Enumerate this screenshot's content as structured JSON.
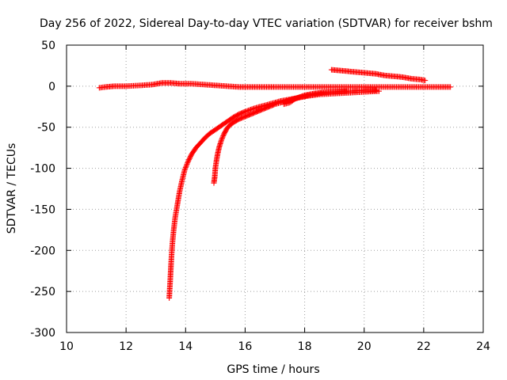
{
  "chart_data": {
    "type": "scatter",
    "title": "Day 256 of 2022, Sidereal Day-to-day VTEC variation (SDTVAR) for receiver bshm",
    "xlabel": "GPS time / hours",
    "ylabel": "SDTVAR / TECUs",
    "xlim": [
      10,
      24
    ],
    "ylim": [
      -300,
      50
    ],
    "xticks": [
      10,
      12,
      14,
      16,
      18,
      20,
      22,
      24
    ],
    "yticks": [
      50,
      0,
      -50,
      -100,
      -150,
      -200,
      -250,
      -300
    ],
    "xtick_labels": [
      "10",
      "12",
      "14",
      "16",
      "18",
      "20",
      "22",
      "24"
    ],
    "ytick_labels": [
      "50",
      "0",
      "-50",
      "-100",
      "-150",
      "-200",
      "-250",
      "-300"
    ],
    "grid": true,
    "marker": "plus",
    "color": "#ff0000",
    "series": [
      {
        "points": [
          [
            11.1,
            -2
          ],
          [
            11.3,
            -1
          ],
          [
            11.6,
            0
          ],
          [
            12.0,
            0
          ],
          [
            12.5,
            1
          ],
          [
            12.9,
            2
          ],
          [
            13.2,
            4
          ],
          [
            13.5,
            4
          ],
          [
            13.8,
            3
          ],
          [
            14.2,
            3
          ],
          [
            14.6,
            2
          ],
          [
            15.0,
            1
          ],
          [
            15.4,
            0
          ],
          [
            15.8,
            -1
          ],
          [
            16.2,
            -1
          ],
          [
            16.6,
            -1
          ],
          [
            17.0,
            -1
          ],
          [
            17.5,
            -1
          ],
          [
            18.0,
            -1
          ],
          [
            18.5,
            -1
          ],
          [
            19.0,
            -1
          ],
          [
            19.5,
            -1
          ],
          [
            20.0,
            -1
          ],
          [
            20.5,
            -1
          ],
          [
            21.0,
            -1
          ],
          [
            21.5,
            -1
          ],
          [
            22.0,
            -1
          ],
          [
            22.5,
            -1
          ],
          [
            22.9,
            -1
          ]
        ]
      },
      {
        "points": [
          [
            13.45,
            -258
          ],
          [
            13.47,
            -245
          ],
          [
            13.49,
            -232
          ],
          [
            13.51,
            -218
          ],
          [
            13.53,
            -205
          ],
          [
            13.56,
            -190
          ],
          [
            13.6,
            -175
          ],
          [
            13.65,
            -160
          ],
          [
            13.72,
            -145
          ],
          [
            13.8,
            -128
          ],
          [
            13.88,
            -115
          ],
          [
            13.97,
            -102
          ],
          [
            14.08,
            -92
          ],
          [
            14.2,
            -83
          ],
          [
            14.35,
            -75
          ],
          [
            14.5,
            -69
          ],
          [
            14.65,
            -63
          ],
          [
            14.8,
            -58
          ],
          [
            15.0,
            -53
          ],
          [
            15.2,
            -48
          ],
          [
            15.4,
            -43
          ],
          [
            15.6,
            -38
          ],
          [
            15.8,
            -34
          ],
          [
            16.0,
            -31
          ],
          [
            16.3,
            -27
          ],
          [
            16.6,
            -24
          ],
          [
            16.9,
            -21
          ],
          [
            17.2,
            -18
          ],
          [
            17.5,
            -16
          ],
          [
            17.8,
            -14
          ],
          [
            18.1,
            -12
          ],
          [
            18.5,
            -10
          ],
          [
            19.0,
            -9
          ],
          [
            19.5,
            -8
          ],
          [
            20.0,
            -7
          ],
          [
            20.5,
            -6
          ]
        ]
      },
      {
        "points": [
          [
            14.95,
            -118
          ],
          [
            14.98,
            -110
          ],
          [
            15.0,
            -100
          ],
          [
            15.04,
            -90
          ],
          [
            15.08,
            -82
          ],
          [
            15.13,
            -74
          ],
          [
            15.2,
            -66
          ],
          [
            15.28,
            -59
          ],
          [
            15.38,
            -52
          ],
          [
            15.5,
            -47
          ],
          [
            15.65,
            -43
          ],
          [
            15.8,
            -40
          ],
          [
            16.0,
            -37
          ],
          [
            16.2,
            -34
          ],
          [
            16.4,
            -31
          ],
          [
            16.6,
            -28
          ],
          [
            16.8,
            -25
          ],
          [
            17.0,
            -22
          ],
          [
            17.2,
            -20
          ],
          [
            17.4,
            -18
          ],
          [
            17.6,
            -16
          ],
          [
            17.8,
            -14
          ],
          [
            18.0,
            -12
          ],
          [
            18.3,
            -10
          ],
          [
            18.6,
            -8
          ],
          [
            19.0,
            -7
          ],
          [
            19.4,
            -6
          ]
        ]
      },
      {
        "points": [
          [
            17.3,
            -22
          ],
          [
            17.5,
            -20
          ],
          [
            17.7,
            -15
          ],
          [
            18.0,
            -11
          ],
          [
            18.3,
            -9
          ],
          [
            18.6,
            -8
          ],
          [
            19.0,
            -7
          ],
          [
            19.5,
            -6
          ],
          [
            20.0,
            -5
          ],
          [
            20.4,
            -5
          ]
        ]
      },
      {
        "points": [
          [
            18.9,
            20
          ],
          [
            19.2,
            19
          ],
          [
            19.5,
            18
          ],
          [
            19.8,
            17
          ],
          [
            20.1,
            16
          ],
          [
            20.4,
            15
          ],
          [
            20.7,
            13
          ],
          [
            21.0,
            12
          ],
          [
            21.3,
            11
          ],
          [
            21.6,
            9
          ],
          [
            21.9,
            8
          ],
          [
            22.05,
            7
          ]
        ]
      }
    ]
  }
}
